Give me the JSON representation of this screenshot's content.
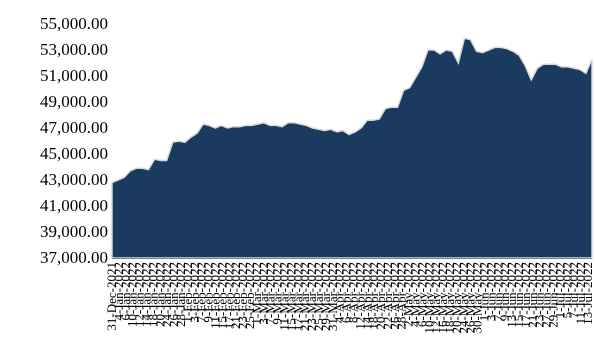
{
  "chart_data": {
    "type": "area",
    "title": "",
    "xlabel": "",
    "ylabel": "",
    "ylim": [
      37000,
      55000
    ],
    "yticks": [
      37000,
      39000,
      41000,
      43000,
      45000,
      47000,
      49000,
      51000,
      53000,
      55000
    ],
    "ytick_labels": [
      "37,000.00",
      "39,000.00",
      "41,000.00",
      "43,000.00",
      "45,000.00",
      "47,000.00",
      "49,000.00",
      "51,000.00",
      "53,000.00",
      "55,000.00"
    ],
    "grid": false,
    "legend": "none",
    "colors": {
      "fill": "#1b3a5f",
      "edge": "#d9d9d9"
    },
    "x_tick_labels": [
      "31-Dec-2021",
      "4-Jan-2022",
      "6-Jan-2022",
      "10-Jan-2022",
      "12-Jan-2022",
      "14-Jan-2022",
      "18-Jan-2022",
      "20-Jan-2022",
      "24-Jan-2022",
      "26-Jan-2022",
      "28-Jan-2022",
      "1-Feb-2022",
      "3-Feb-2022",
      "7-Feb-2022",
      "9-Feb-2022",
      "11-Feb-2022",
      "15-Feb-2022",
      "17-Feb-2022",
      "21-Feb-2022",
      "23-Feb-2022",
      "25-Feb-2022",
      "1-Mar-2022",
      "3-Mar-2022",
      "7-Mar-2022",
      "9-Mar-2022",
      "11-Mar-2022",
      "15-Mar-2022",
      "17-Mar-2022",
      "21-Mar-2022",
      "23-Mar-2022",
      "25-Mar-2022",
      "29-Mar-2022",
      "31-Mar-2022",
      "4-Apr-2022",
      "6-Apr-2022",
      "8-Apr-2022",
      "12-Apr-2022",
      "14-Apr-2022",
      "18-Apr-2022",
      "20-Apr-2022",
      "22-Apr-2022",
      "26-Apr-2022",
      "28-Apr-2022",
      "2-May-2022",
      "4-May-2022",
      "6-May-2022",
      "10-May-2022",
      "12-May-2022",
      "16-May-2022",
      "18-May-2022",
      "20-May-2022",
      "24-May-2022",
      "26-May-2022",
      "30-May-2022",
      "1-Jun-2022",
      "3-Jun-2022",
      "7-Jun-2022",
      "9-Jun-2022",
      "13-Jun-2022",
      "15-Jun-2022",
      "17-Jun-2022",
      "21-Jun-2022",
      "23-Jun-2022",
      "27-Jun-2022",
      "29-Jun-2022",
      "1-Jul-2022",
      "5-Jul-2022",
      "7-Jul-2022",
      "11-Jul-2022",
      "13-Jul-2022"
    ],
    "values": [
      42800,
      43000,
      43200,
      43700,
      43900,
      43900,
      43800,
      44600,
      44500,
      44500,
      45900,
      46000,
      45900,
      46300,
      46600,
      47300,
      47200,
      47000,
      47200,
      47000,
      47100,
      47100,
      47200,
      47200,
      47300,
      47400,
      47200,
      47200,
      47100,
      47400,
      47400,
      47300,
      47200,
      47000,
      46900,
      46800,
      46900,
      46700,
      46800,
      46500,
      46700,
      47000,
      47600,
      47600,
      47700,
      48500,
      48600,
      48600,
      49900,
      50100,
      50900,
      51700,
      53000,
      53000,
      52700,
      53000,
      52900,
      52000,
      53900,
      53800,
      52900,
      52800,
      53000,
      53200,
      53200,
      53100,
      52900,
      52600,
      51800,
      50700,
      51600,
      51900,
      51900,
      51900,
      51700,
      51700,
      51600,
      51500,
      51200,
      52300
    ]
  }
}
